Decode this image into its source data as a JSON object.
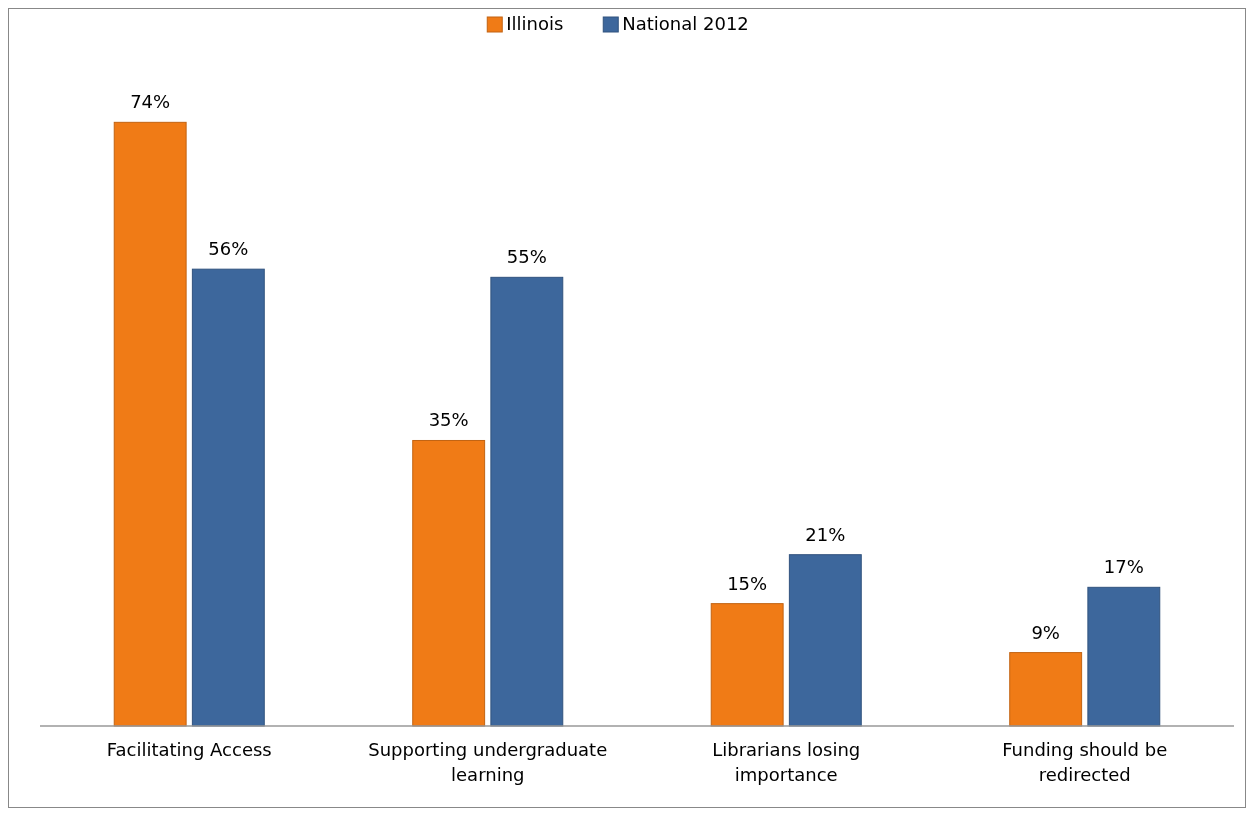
{
  "chart_data": {
    "type": "bar",
    "categories": [
      "Facilitating Access",
      "Supporting undergraduate learning",
      "Librarians losing importance",
      "Funding should be redirected"
    ],
    "series": [
      {
        "name": "Illinois",
        "color": "#f07b16",
        "values": [
          74,
          35,
          15,
          9
        ],
        "value_labels": [
          "74%",
          "35%",
          "15%",
          "9%"
        ]
      },
      {
        "name": "National 2012",
        "color": "#3d679c",
        "values": [
          56,
          55,
          21,
          17
        ],
        "value_labels": [
          "56%",
          "55%",
          "21%",
          "17%"
        ]
      }
    ],
    "legend": "top"
  }
}
